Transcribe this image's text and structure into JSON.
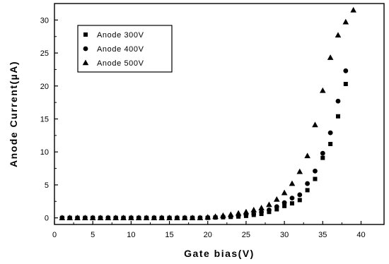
{
  "chart_data": {
    "type": "scatter",
    "title": "",
    "xlabel": "Gate bias(V)",
    "ylabel": "Anode Current(µA)",
    "xlim": [
      0,
      43
    ],
    "ylim": [
      -1,
      32.5
    ],
    "xticks": [
      0,
      5,
      10,
      15,
      20,
      25,
      30,
      35,
      40
    ],
    "yticks": [
      0,
      5,
      10,
      15,
      20,
      25,
      30
    ],
    "xtick_labels": [
      "0",
      "5",
      "10",
      "15",
      "20",
      "25",
      "30",
      "35",
      "40"
    ],
    "ytick_labels": [
      "0",
      "5",
      "10",
      "15",
      "20",
      "25",
      "30"
    ],
    "grid": false,
    "legend_position": "top-left",
    "series": [
      {
        "name": "Anode 300V",
        "marker": "square",
        "x": [
          1,
          2,
          3,
          4,
          5,
          6,
          7,
          8,
          9,
          10,
          11,
          12,
          13,
          14,
          15,
          16,
          17,
          18,
          19,
          20,
          21,
          22,
          23,
          24,
          25,
          26,
          27,
          28,
          29,
          30,
          31,
          32,
          33,
          34,
          35,
          36,
          37,
          38
        ],
        "y": [
          0,
          0,
          0,
          0,
          0,
          0,
          0,
          0,
          0,
          0,
          0,
          0,
          0,
          0,
          0,
          0,
          0,
          0,
          0,
          0,
          0.05,
          0.1,
          0.15,
          0.2,
          0.3,
          0.45,
          0.6,
          0.9,
          1.3,
          1.8,
          2.2,
          2.7,
          4.2,
          5.9,
          9.1,
          11.2,
          15.4,
          20.3
        ]
      },
      {
        "name": "Anode 400V",
        "marker": "circle",
        "x": [
          1,
          2,
          3,
          4,
          5,
          6,
          7,
          8,
          9,
          10,
          11,
          12,
          13,
          14,
          15,
          16,
          17,
          18,
          19,
          20,
          21,
          22,
          23,
          24,
          25,
          26,
          27,
          28,
          29,
          30,
          31,
          32,
          33,
          34,
          35,
          36,
          37,
          38
        ],
        "y": [
          0,
          0,
          0,
          0,
          0,
          0,
          0,
          0,
          0,
          0,
          0,
          0,
          0,
          0,
          0,
          0,
          0,
          0,
          0,
          0.05,
          0.1,
          0.15,
          0.2,
          0.3,
          0.45,
          0.6,
          0.9,
          1.2,
          1.7,
          2.3,
          3.0,
          3.5,
          5.2,
          7.1,
          9.8,
          12.9,
          17.7,
          22.3
        ]
      },
      {
        "name": "Anode 500V",
        "marker": "triangle",
        "x": [
          1,
          2,
          3,
          4,
          5,
          6,
          7,
          8,
          9,
          10,
          11,
          12,
          13,
          14,
          15,
          16,
          17,
          18,
          19,
          20,
          21,
          22,
          23,
          24,
          25,
          26,
          27,
          28,
          29,
          30,
          31,
          32,
          33,
          34,
          35,
          36,
          37,
          38,
          39
        ],
        "y": [
          0,
          0,
          0,
          0,
          0,
          0,
          0,
          0,
          0,
          0,
          0,
          0,
          0,
          0,
          0,
          0,
          0,
          0,
          0,
          0.1,
          0.2,
          0.35,
          0.5,
          0.7,
          0.9,
          1.2,
          1.5,
          2.0,
          2.8,
          3.8,
          5.2,
          7.0,
          9.4,
          14.1,
          19.3,
          24.3,
          27.7,
          29.7,
          31.5
        ]
      }
    ]
  }
}
